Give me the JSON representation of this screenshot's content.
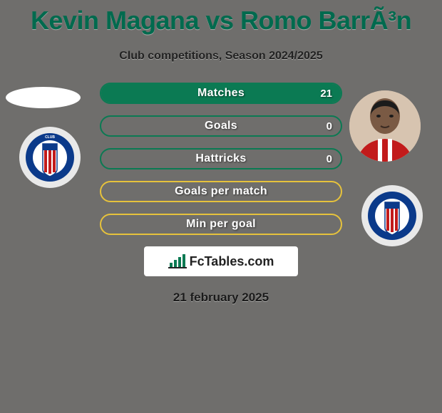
{
  "background_color": "#6f6e6c",
  "title": {
    "text": "Kevin Magana vs Romo BarrÃ³n",
    "color": "#006a4e",
    "fontsize": 36
  },
  "subtitle": {
    "text": "Club competitions, Season 2024/2025",
    "color": "#222222",
    "fontsize": 16
  },
  "stats": {
    "pill_width": 340,
    "pill_height": 30,
    "border_radius": 16,
    "label_fontsize": 16,
    "value_fontsize": 15,
    "rows": [
      {
        "label": "Matches",
        "value": "21",
        "fill_pct": 100,
        "fill_color": "#0b7a53",
        "border_color": "#0b7a53",
        "show_value": true
      },
      {
        "label": "Goals",
        "value": "0",
        "fill_pct": 0,
        "fill_color": "#0b7a53",
        "border_color": "#0b7a53",
        "show_value": true
      },
      {
        "label": "Hattricks",
        "value": "0",
        "fill_pct": 0,
        "fill_color": "#0b7a53",
        "border_color": "#0b7a53",
        "show_value": true
      },
      {
        "label": "Goals per match",
        "value": "",
        "fill_pct": 0,
        "fill_color": "#e6c23c",
        "border_color": "#e6c23c",
        "show_value": false
      },
      {
        "label": "Min per goal",
        "value": "",
        "fill_pct": 0,
        "fill_color": "#e6c23c",
        "border_color": "#e6c23c",
        "show_value": false
      }
    ]
  },
  "players": {
    "a": {
      "name": "Kevin Magana",
      "avatar_bg": "#ffffff"
    },
    "b": {
      "name": "Romo BarrÃ³n",
      "avatar_bg": "#d7c4b0"
    }
  },
  "crest": {
    "bg": "#e9e9e9",
    "ring_outer": "#0b3a8a",
    "ring_text": "#ffffff",
    "center": "#ffffff",
    "stripe": "#c21b1b"
  },
  "branding": {
    "text": "FcTables.com",
    "bg": "#ffffff",
    "color": "#222222",
    "icon_color": "#0b7a53"
  },
  "date": {
    "text": "21 february 2025",
    "color": "#1a1a1a",
    "fontsize": 17
  }
}
